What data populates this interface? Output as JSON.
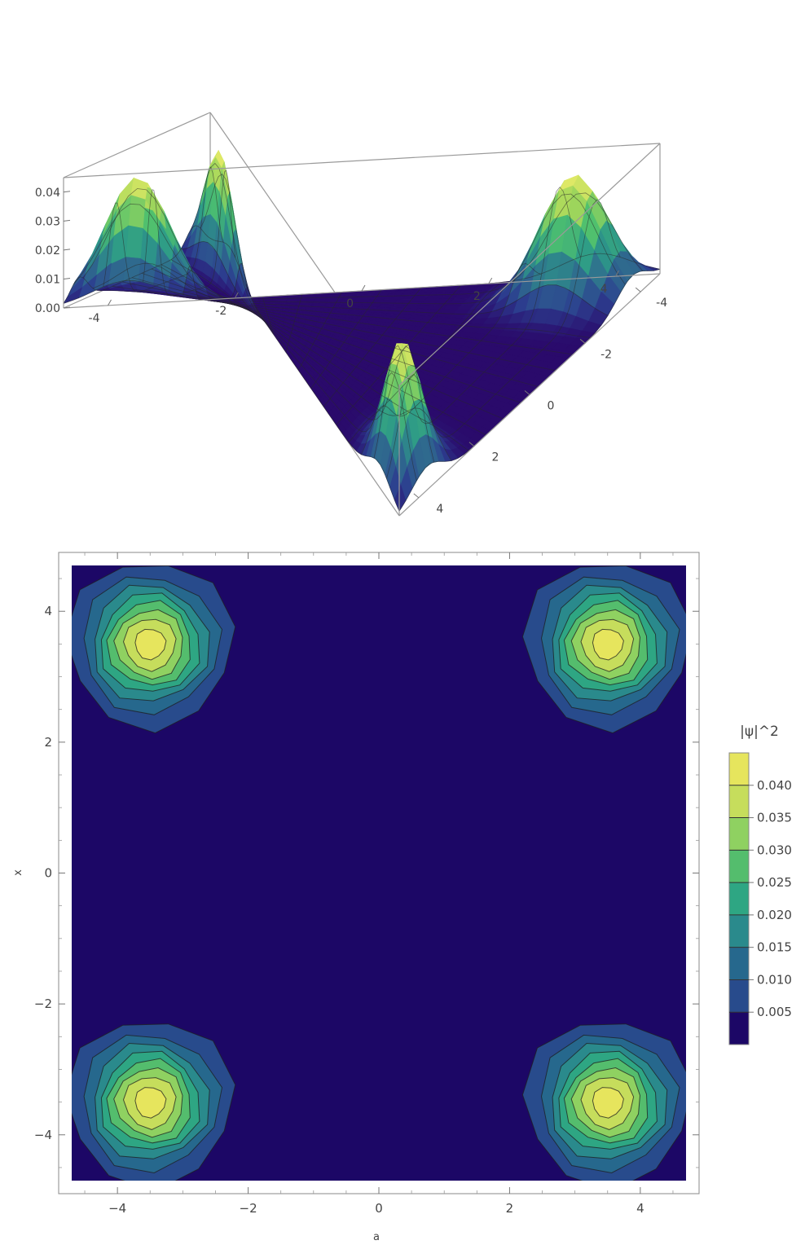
{
  "chart_data": [
    {
      "type": "surface3d",
      "title": "",
      "x_range": [
        -4.7,
        4.7
      ],
      "y_range": [
        -4.7,
        4.7
      ],
      "z_range": [
        0,
        0.045
      ],
      "z_ticks": [
        "0.00",
        "0.01",
        "0.02",
        "0.03",
        "0.04"
      ],
      "z_tick_values": [
        0,
        0.01,
        0.02,
        0.03,
        0.04
      ],
      "x_ticks": [
        "-4",
        "-2",
        "0",
        "2",
        "4"
      ],
      "x_tick_values": [
        -4,
        -2,
        0,
        2,
        4
      ],
      "y_ticks": [
        "-4",
        "-2",
        "0",
        "2",
        "4"
      ],
      "y_tick_values": [
        -4,
        -2,
        0,
        2,
        4
      ],
      "peaks": [
        {
          "x": 3.7,
          "y": 3.7,
          "height": 0.043
        },
        {
          "x": -3.7,
          "y": 3.7,
          "height": 0.043
        },
        {
          "x": 3.7,
          "y": -3.7,
          "height": 0.043
        },
        {
          "x": -3.7,
          "y": -3.7,
          "height": 0.043
        }
      ],
      "mesh_lines": 15,
      "colormap": [
        "#2a0a6b",
        "#2c3f8f",
        "#2f6e8e",
        "#2d9a88",
        "#4dbf6f",
        "#a6d85a",
        "#f4ee6a"
      ]
    },
    {
      "type": "contour",
      "title": "",
      "xlabel": "a",
      "ylabel": "x",
      "x_range": [
        -4.7,
        4.7
      ],
      "y_range": [
        -4.7,
        4.7
      ],
      "x_ticks": [
        "−4",
        "−2",
        "0",
        "2",
        "4"
      ],
      "x_tick_values": [
        -4,
        -2,
        0,
        2,
        4
      ],
      "y_ticks": [
        "−4",
        "−2",
        "0",
        "2",
        "4"
      ],
      "y_tick_values": [
        -4,
        -2,
        0,
        2,
        4
      ],
      "peaks": [
        {
          "x": 3.5,
          "y": 3.5,
          "height": 0.043
        },
        {
          "x": -3.5,
          "y": 3.5,
          "height": 0.043
        },
        {
          "x": 3.5,
          "y": -3.5,
          "height": 0.043
        },
        {
          "x": -3.5,
          "y": -3.5,
          "height": 0.043
        }
      ],
      "levels": [
        0.005,
        0.01,
        0.015,
        0.02,
        0.025,
        0.03,
        0.035,
        0.04
      ],
      "level_colors": [
        "#1c0766",
        "#284b8c",
        "#26688d",
        "#2a8a8c",
        "#2ea683",
        "#54bd6d",
        "#8fd161",
        "#c6dd5c",
        "#e6e55d"
      ],
      "legend": {
        "title": "|ψ|^2",
        "labels": [
          "0.040",
          "0.035",
          "0.030",
          "0.025",
          "0.020",
          "0.015",
          "0.010",
          "0.005"
        ]
      }
    }
  ]
}
